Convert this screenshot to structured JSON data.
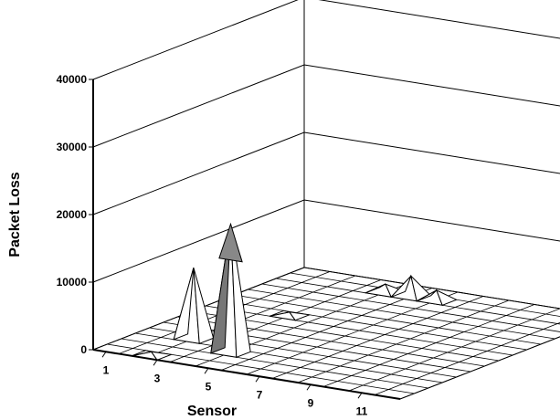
{
  "chart_data": {
    "type": "surface",
    "title": "",
    "xlabel": "Sensor",
    "ylabel": "Packet Loss",
    "zlim": [
      0,
      40000
    ],
    "z_ticks": [
      "0",
      "10000",
      "20000",
      "30000",
      "40000"
    ],
    "x_ticks": [
      "1",
      "3",
      "5",
      "7",
      "9",
      "11"
    ],
    "x_sensors": [
      1,
      2,
      3,
      4,
      5,
      6,
      7,
      8,
      9,
      10,
      11,
      12
    ],
    "grid": true,
    "peaks": [
      {
        "sensor": 3,
        "depth_index": 0,
        "value": 500
      },
      {
        "sensor": 3,
        "depth_index": 3,
        "value": 10500
      },
      {
        "sensor": 5,
        "depth_index": 2,
        "value": 19000
      },
      {
        "sensor": 4,
        "depth_index": 8,
        "value": 500
      },
      {
        "sensor": 5,
        "depth_index": 13,
        "value": 1200
      },
      {
        "sensor": 6,
        "depth_index": 13,
        "value": 3000
      },
      {
        "sensor": 7,
        "depth_index": 13,
        "value": 1500
      }
    ]
  }
}
